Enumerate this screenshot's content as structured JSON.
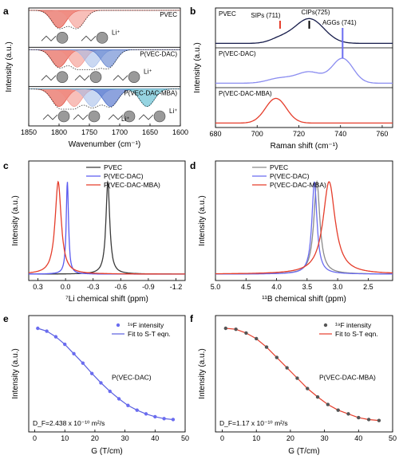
{
  "chart_data": [
    {
      "panel": "a",
      "type": "line",
      "xlabel": "Wavenumber (cm⁻¹)",
      "ylabel": "Intensity (a.u.)",
      "xlim": [
        1850,
        1600
      ],
      "xticks": [
        1850,
        1800,
        1750,
        1700,
        1650,
        1600
      ],
      "subpanels": [
        {
          "name": "PVEC",
          "components": [
            {
              "center": 1800,
              "color": "#e03a2a"
            },
            {
              "center": 1770,
              "color": "#f28a80"
            }
          ]
        },
        {
          "name": "P(VEC-DAC)",
          "components": [
            {
              "center": 1800,
              "color": "#e03a2a"
            },
            {
              "center": 1770,
              "color": "#f28a80"
            },
            {
              "center": 1745,
              "color": "#9fb8e8"
            },
            {
              "center": 1718,
              "color": "#4d73c8"
            }
          ]
        },
        {
          "name": "P(VEC-DAC-MBA)",
          "components": [
            {
              "center": 1800,
              "color": "#e03a2a"
            },
            {
              "center": 1775,
              "color": "#f28a80"
            },
            {
              "center": 1745,
              "color": "#9fb8e8"
            },
            {
              "center": 1715,
              "color": "#2f58c2"
            },
            {
              "center": 1655,
              "color": "#3fb0c8"
            }
          ]
        }
      ],
      "annotations": [
        "Li⁺",
        "Li⁺",
        "Li⁺",
        "Li⁺"
      ]
    },
    {
      "panel": "b",
      "type": "line",
      "xlabel": "Raman shift (cm⁻¹)",
      "ylabel": "Intensity (a.u.)",
      "xlim": [
        680,
        765
      ],
      "xticks": [
        680,
        700,
        720,
        740,
        760
      ],
      "series": [
        {
          "name": "PVEC",
          "color": "#151b4a",
          "peaks": [
            {
              "x": 711,
              "a": 0.18,
              "w": 5
            },
            {
              "x": 725,
              "a": 1.0,
              "w": 7
            }
          ]
        },
        {
          "name": "P(VEC-DAC)",
          "color": "#8a8cf0",
          "peaks": [
            {
              "x": 711,
              "a": 0.2,
              "w": 6
            },
            {
              "x": 725,
              "a": 0.45,
              "w": 6
            },
            {
              "x": 741,
              "a": 1.0,
              "w": 5
            }
          ]
        },
        {
          "name": "P(VEC-DAC-MBA)",
          "color": "#e53d2b",
          "peaks": [
            {
              "x": 709,
              "a": 1.0,
              "w": 5
            }
          ]
        }
      ],
      "annotations": [
        {
          "text": "SIPs (711)",
          "x": 711,
          "color": "#e53d2b"
        },
        {
          "text": "CIPs(725)",
          "x": 725,
          "color": "#000000"
        },
        {
          "text": "AGGs (741)",
          "x": 741,
          "color": "#6a6cf0"
        }
      ]
    },
    {
      "panel": "c",
      "type": "line",
      "xlabel": "⁷Li chemical shift (ppm)",
      "ylabel": "Intensity (a.u.)",
      "xlim": [
        0.4,
        -1.3
      ],
      "xticks": [
        0.3,
        0.0,
        -0.3,
        -0.6,
        -0.9,
        -1.2
      ],
      "xticklabels": [
        "0.3",
        "0.0",
        "-0.3",
        "-0.6",
        "-0.9",
        "-1.2"
      ],
      "series": [
        {
          "name": "PVEC",
          "color": "#3a3a3a",
          "center": -0.46,
          "width": 0.025
        },
        {
          "name": "P(VEC-DAC)",
          "color": "#5a5af0",
          "center": -0.02,
          "width": 0.015
        },
        {
          "name": "P(VEC-DAC-MBA)",
          "color": "#e53d2b",
          "center": 0.08,
          "width": 0.04
        }
      ]
    },
    {
      "panel": "d",
      "type": "line",
      "xlabel": "¹¹B chemical shift (ppm)",
      "ylabel": "Intensity (a.u.)",
      "xlim": [
        5.0,
        2.1
      ],
      "xticks": [
        5.0,
        4.5,
        4.0,
        3.5,
        3.0,
        2.5
      ],
      "xticklabels": [
        "5.0",
        "4.5",
        "4.0",
        "3.5",
        "3.0",
        "2.5"
      ],
      "series": [
        {
          "name": "PVEC",
          "color": "#8a8a8a",
          "center": 3.34,
          "width": 0.06
        },
        {
          "name": "P(VEC-DAC)",
          "color": "#6a6cf0",
          "center": 3.38,
          "width": 0.05
        },
        {
          "name": "P(VEC-DAC-MBA)",
          "color": "#e53d2b",
          "center": 3.14,
          "width": 0.12
        }
      ]
    },
    {
      "panel": "e",
      "type": "scatter",
      "xlabel": "G (T/cm)",
      "ylabel": "Intensity (a.u.)",
      "xlim": [
        -2,
        50
      ],
      "xticks": [
        0,
        10,
        20,
        30,
        40,
        50
      ],
      "legend": [
        "¹⁹F intensity",
        "Fit to S-T eqn."
      ],
      "sample": "P(VEC-DAC)",
      "diffusion": "D_F=2.438 x 10⁻¹⁰ m²/s",
      "marker_color": "#6a6cf0",
      "line_color": "#5a5fe0",
      "x": [
        1,
        4,
        7,
        10,
        13,
        16,
        19,
        22,
        25,
        28,
        31,
        34,
        37,
        40,
        43,
        46
      ],
      "y": [
        1.0,
        0.97,
        0.91,
        0.83,
        0.73,
        0.63,
        0.52,
        0.42,
        0.33,
        0.25,
        0.18,
        0.13,
        0.09,
        0.06,
        0.04,
        0.03
      ]
    },
    {
      "panel": "f",
      "type": "scatter",
      "xlabel": "G (T/cm)",
      "ylabel": "Intensity (a.u.)",
      "xlim": [
        -2,
        50
      ],
      "xticks": [
        0,
        10,
        20,
        30,
        40,
        50
      ],
      "legend": [
        "¹⁹F intensity",
        "Fit to S-T eqn."
      ],
      "sample": "P(VEC-DAC-MBA)",
      "diffusion": "D_F=1.17 x 10⁻¹⁰ m²/s",
      "marker_color": "#555555",
      "line_color": "#e53d2b",
      "x": [
        1,
        4,
        7,
        10,
        13,
        16,
        19,
        22,
        25,
        28,
        31,
        34,
        37,
        40,
        43,
        46
      ],
      "y": [
        1.0,
        0.99,
        0.95,
        0.89,
        0.8,
        0.69,
        0.58,
        0.47,
        0.36,
        0.27,
        0.19,
        0.13,
        0.09,
        0.05,
        0.03,
        0.02
      ]
    }
  ]
}
